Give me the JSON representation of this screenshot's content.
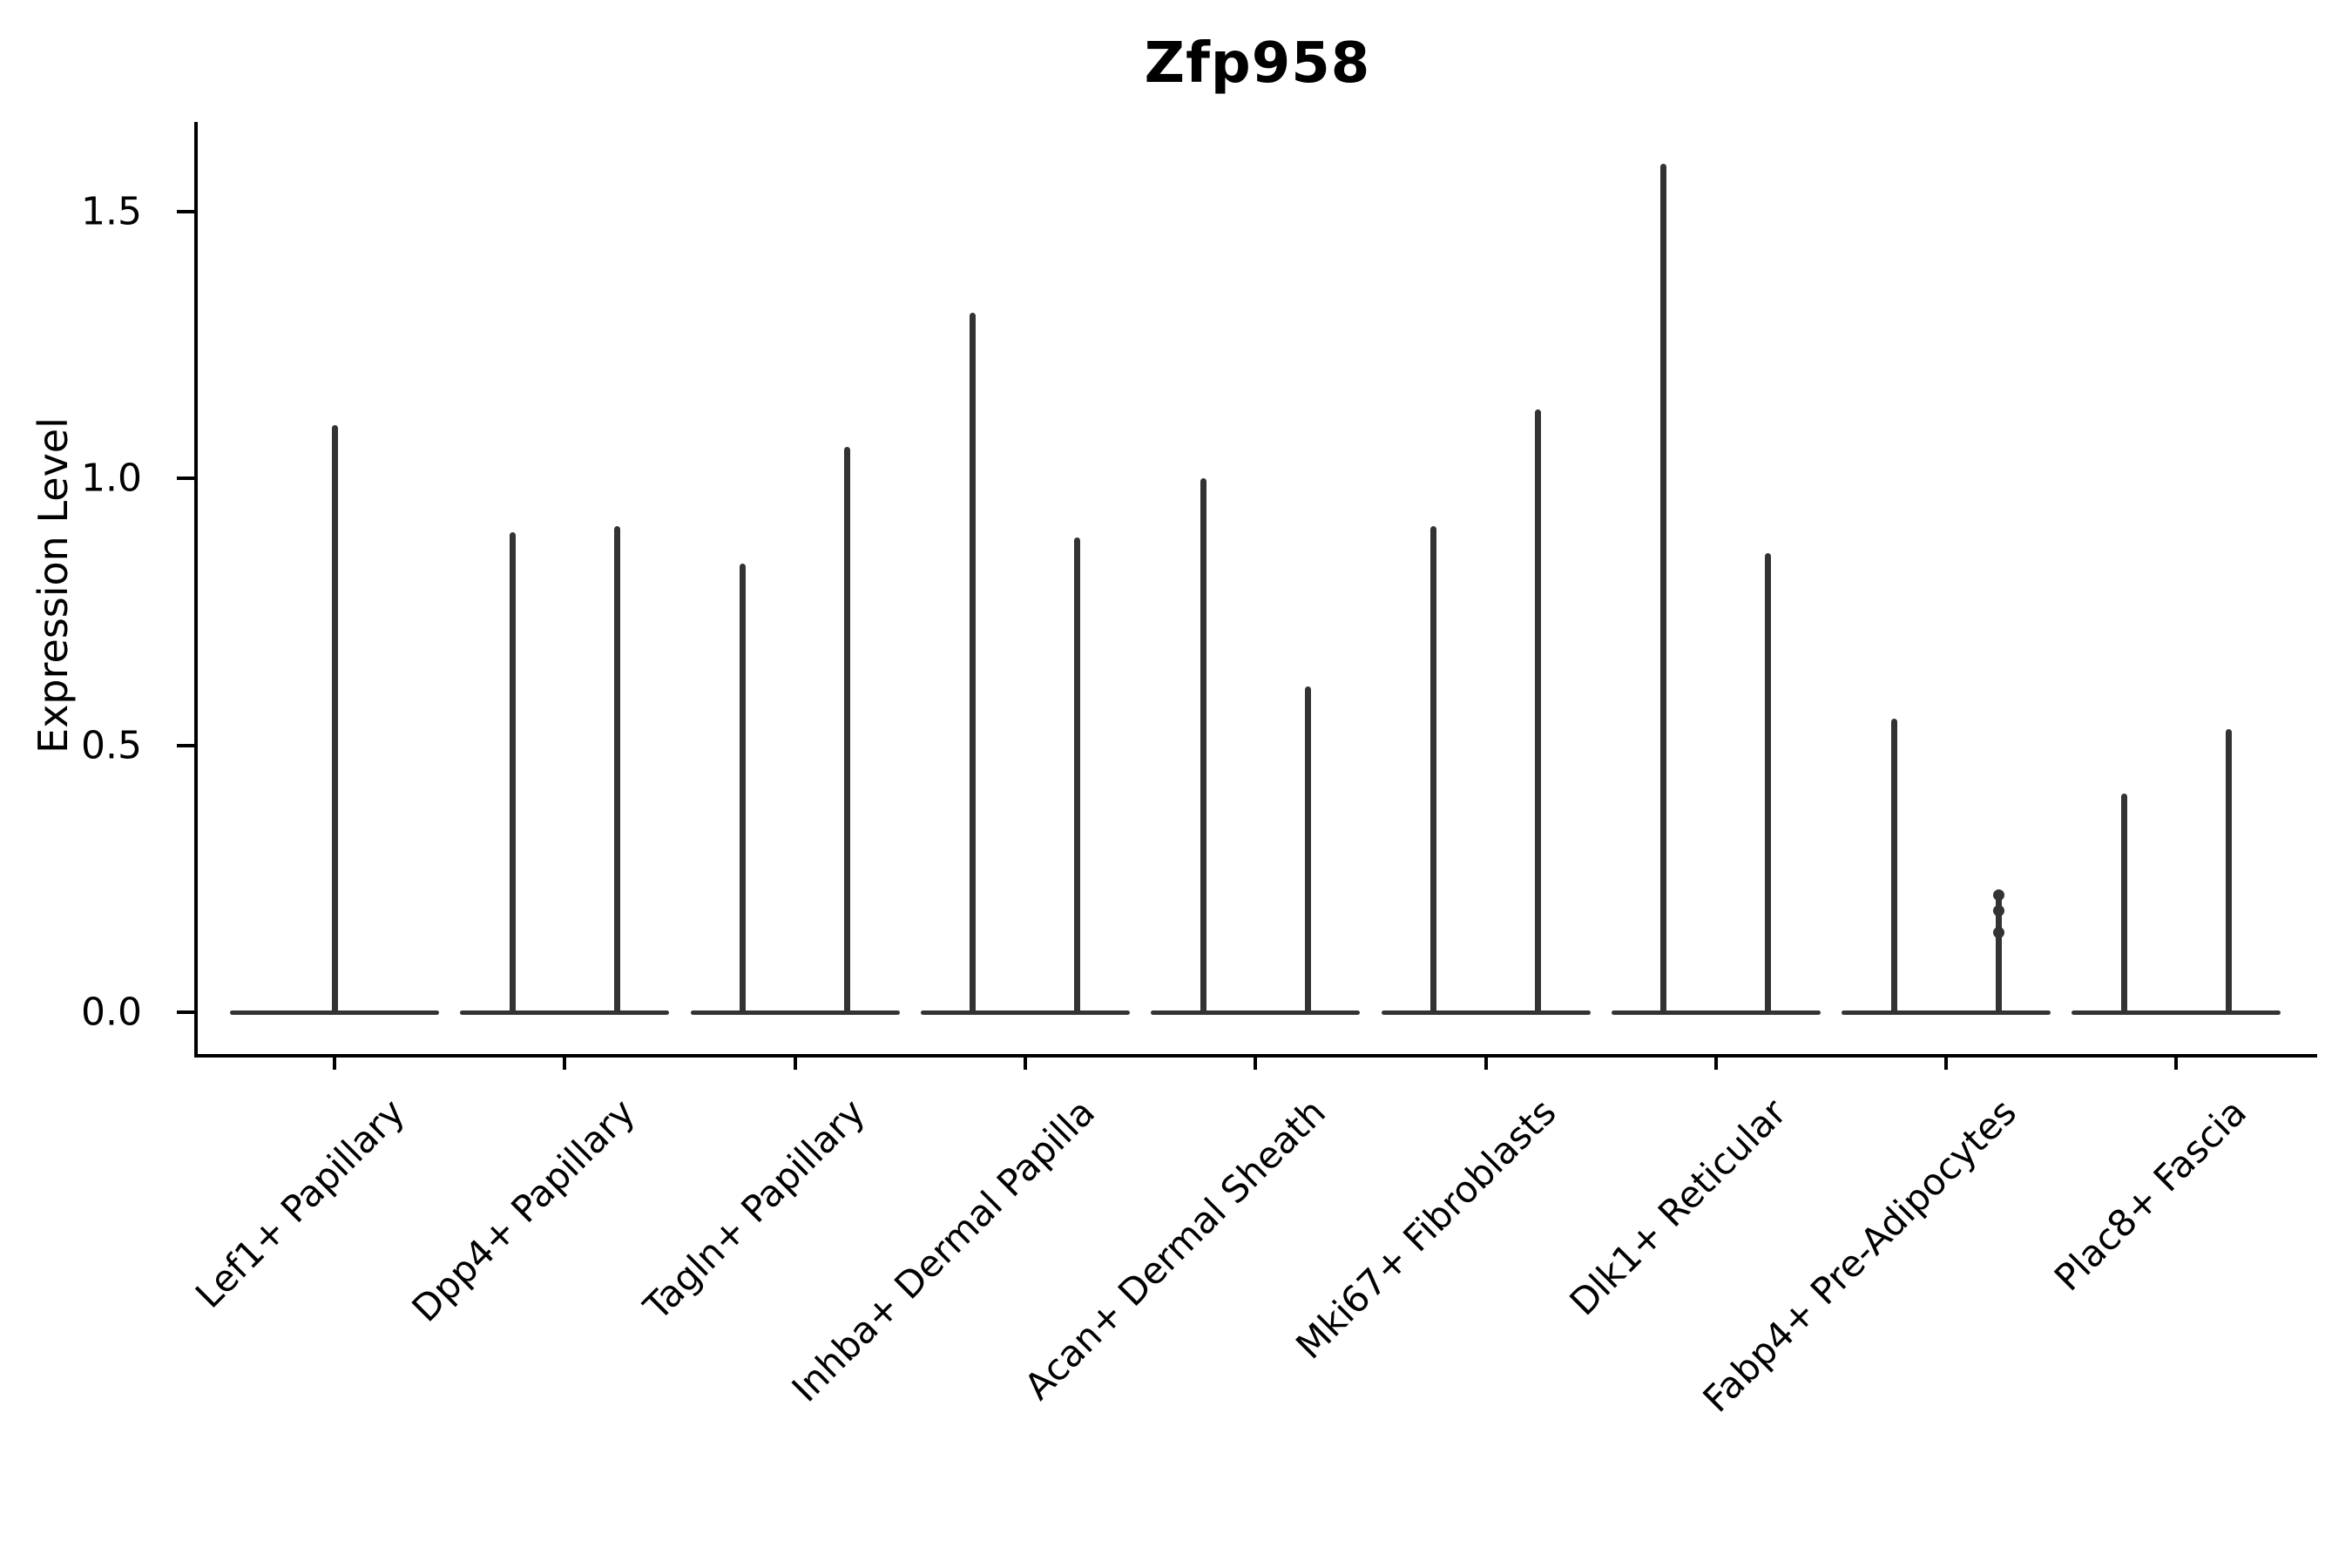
{
  "title": "Zfp958",
  "axes": {
    "ylabel": "Expression Level",
    "ytick_labels": [
      "0.0",
      "0.5",
      "1.0",
      "1.5"
    ]
  },
  "colors": {
    "background": "#ffffff",
    "violin": "#333333",
    "axis": "#000000",
    "text": "#000000"
  },
  "chart_data": {
    "type": "violin",
    "title": "Zfp958",
    "xlabel": "",
    "ylabel": "Expression Level",
    "ylim": [
      0,
      1.65
    ],
    "yticks": [
      0,
      0.5,
      1.0,
      1.5
    ],
    "grid": false,
    "legend": "none",
    "description": "Single-cell gene expression violin plot; each cell-type category shows flat near-zero density violins with thin spikes reaching the maximum expression value. Categories 2-9 contain two adjacent violins (spikes at left/right quarter positions); category 1 has a single centered spike.",
    "categories": [
      "Lef1+ Papillary",
      "Dpp4+ Papillary",
      "Tagln+ Papillary",
      "Inhba+ Dermal Papilla",
      "Acan+ Dermal Sheath",
      "Mki67+ Fibroblasts",
      "Dlk1+ Reticular",
      "Fabp4+ Pre-Adipocytes",
      "Plac8+ Fascia"
    ],
    "violins": [
      {
        "category": "Lef1+ Papillary",
        "spike_max": [
          1.1
        ]
      },
      {
        "category": "Dpp4+ Papillary",
        "spike_max": [
          0.9,
          0.91
        ]
      },
      {
        "category": "Tagln+ Papillary",
        "spike_max": [
          0.84,
          1.06
        ]
      },
      {
        "category": "Inhba+ Dermal Papilla",
        "spike_max": [
          1.31,
          0.89
        ]
      },
      {
        "category": "Acan+ Dermal Sheath",
        "spike_max": [
          1.0,
          0.61
        ]
      },
      {
        "category": "Mki67+ Fibroblasts",
        "spike_max": [
          0.91,
          1.13
        ]
      },
      {
        "category": "Dlk1+ Reticular",
        "spike_max": [
          1.59,
          0.86
        ]
      },
      {
        "category": "Fabp4+ Pre-Adipocytes",
        "spike_max": [
          0.55,
          0.22
        ],
        "dots_on_spike_2": [
          0.22,
          0.19,
          0.15
        ]
      },
      {
        "category": "Plac8+ Fascia",
        "spike_max": [
          0.41,
          0.53
        ]
      }
    ]
  }
}
